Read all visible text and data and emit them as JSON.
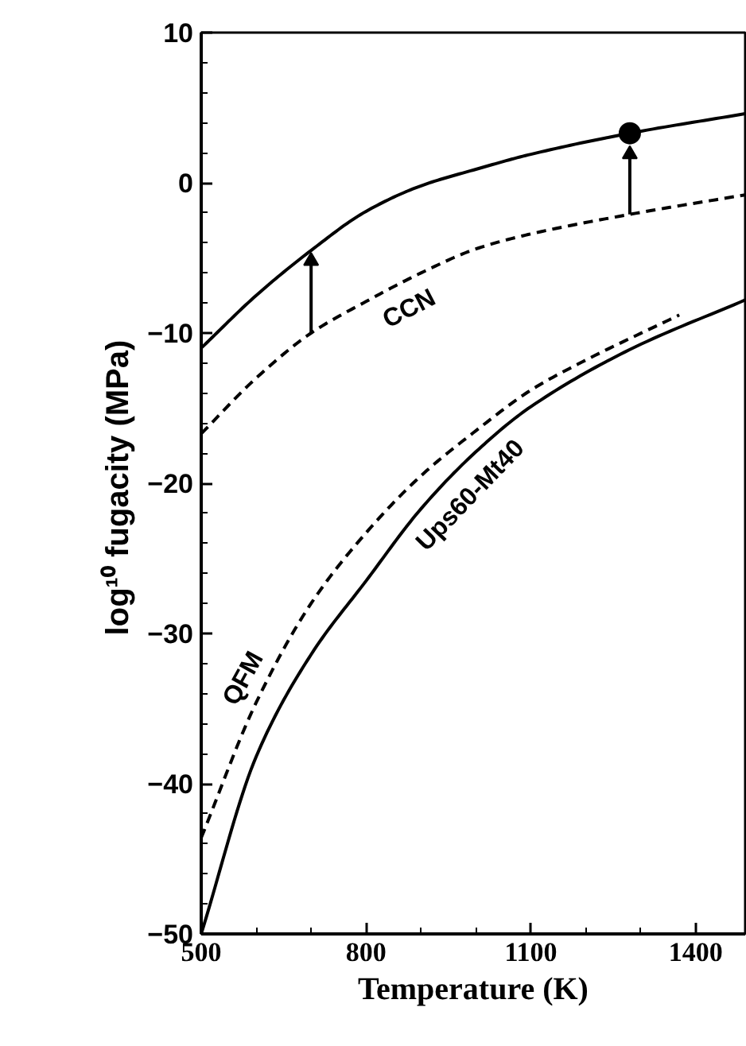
{
  "chart_data": {
    "type": "line",
    "xlabel": "Temperature (K)",
    "ylabel": "log¹⁰ fugacity  (MPa)",
    "xlim": [
      500,
      1490
    ],
    "ylim": [
      -50,
      10
    ],
    "xticks": [
      500,
      {
        "value": 600,
        "label": null
      },
      {
        "value": 700,
        "label": null
      },
      800,
      {
        "value": 900,
        "label": null
      },
      {
        "value": 1000,
        "label": null
      },
      1100,
      {
        "value": 1200,
        "label": null
      },
      {
        "value": 1300,
        "label": null
      },
      1400
    ],
    "yticks": [
      -50,
      {
        "value": -48,
        "label": null
      },
      {
        "value": -46,
        "label": null
      },
      {
        "value": -44,
        "label": null
      },
      {
        "value": -42,
        "label": null
      },
      -40,
      {
        "value": -38,
        "label": null
      },
      {
        "value": -36,
        "label": null
      },
      {
        "value": -34,
        "label": null
      },
      {
        "value": -32,
        "label": null
      },
      -30,
      {
        "value": -28,
        "label": null
      },
      {
        "value": -26,
        "label": null
      },
      {
        "value": -24,
        "label": null
      },
      {
        "value": -22,
        "label": null
      },
      -20,
      {
        "value": -18,
        "label": null
      },
      {
        "value": -16,
        "label": null
      },
      {
        "value": -14,
        "label": null
      },
      {
        "value": -12,
        "label": null
      },
      -10,
      {
        "value": -8,
        "label": null
      },
      {
        "value": -6,
        "label": null
      },
      {
        "value": -4,
        "label": null
      },
      {
        "value": -2,
        "label": null
      },
      0,
      {
        "value": 2,
        "label": null
      },
      {
        "value": 4,
        "label": null
      },
      {
        "value": 6,
        "label": null
      },
      {
        "value": 8,
        "label": null
      },
      10
    ],
    "grid": false,
    "marker": "none",
    "series": [
      {
        "color": "#000000",
        "line_style": "solid",
        "x": [
          500,
          600,
          700,
          800,
          900,
          1000,
          1100,
          1280,
          1490
        ],
        "values": [
          -11.0,
          -7.5,
          -4.5,
          -1.9,
          -0.2,
          0.9,
          1.9,
          3.3,
          4.6
        ]
      },
      {
        "name": "CCN",
        "color": "#000000",
        "line_style": "dashed",
        "x": [
          500,
          600,
          700,
          800,
          900,
          1000,
          1100,
          1280,
          1490
        ],
        "values": [
          -16.7,
          -13.0,
          -10.0,
          -7.9,
          -6.0,
          -4.4,
          -3.4,
          -2.1,
          -0.8
        ]
      },
      {
        "name": "QFM",
        "color": "#000000",
        "line_style": "dashed",
        "x": [
          500,
          600,
          700,
          800,
          900,
          1000,
          1100,
          1200,
          1370
        ],
        "values": [
          -43.6,
          -34.6,
          -28.0,
          -23.3,
          -19.5,
          -16.5,
          -13.8,
          -11.8,
          -8.8
        ]
      },
      {
        "name": "Ups60-Mt40",
        "color": "#000000",
        "line_style": "solid",
        "x": [
          500,
          600,
          700,
          800,
          900,
          1000,
          1100,
          1280,
          1490
        ],
        "values": [
          -50.0,
          -38.2,
          -31.4,
          -26.5,
          -21.7,
          -17.9,
          -14.9,
          -11.1,
          -7.8
        ]
      },
      {
        "type": "scatter",
        "marker": "circle",
        "color": "#000000",
        "x": [
          1280
        ],
        "values": [
          3.3
        ]
      },
      {
        "type": "line",
        "marker": "triangle",
        "line_style": "solid",
        "color": "#000000",
        "x": [
          700,
          700
        ],
        "values": [
          -10.0,
          -5.2
        ]
      },
      {
        "type": "line",
        "marker": "triangle",
        "line_style": "solid",
        "color": "#000000",
        "x": [
          1280,
          1280
        ],
        "values": [
          -2.1,
          1.9
        ]
      }
    ]
  }
}
